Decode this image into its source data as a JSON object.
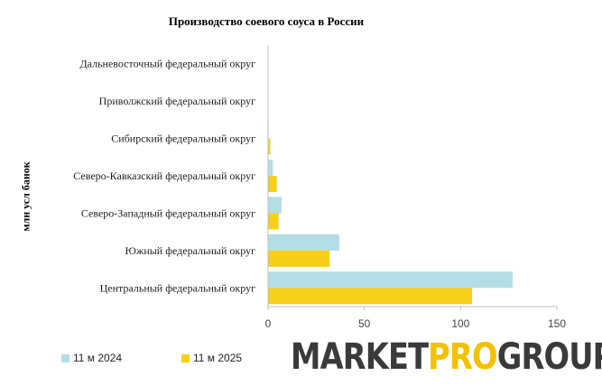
{
  "colors": {
    "series_2024": "#b5dde6",
    "series_2025": "#f5cf18",
    "axis": "#bfbfbf",
    "logo_dark": "#3a3a3a",
    "logo_accent": "#f2c100"
  },
  "chart_data": {
    "type": "bar",
    "orientation": "horizontal",
    "title": "Производство соевого соуса в России",
    "ylabel": "млн усл банок",
    "xlabel": "",
    "categories": [
      "Центральный федеральный округ",
      "Южный федеральный округ",
      "Северо-Западный федеральный округ",
      "Северо-Кавказский федеральный округ",
      "Сибирский федеральный округ",
      "Приволжский федеральный округ",
      "Дальневосточный федеральный округ"
    ],
    "series": [
      {
        "name": "11 м 2024",
        "values": [
          127,
          37,
          7,
          2.5,
          0.3,
          0,
          0
        ]
      },
      {
        "name": "11 м 2025",
        "values": [
          106,
          32,
          5.5,
          4.5,
          1.2,
          0,
          0
        ]
      }
    ],
    "xlim": [
      0,
      150
    ],
    "xticks": [
      "0",
      "50",
      "100",
      "150"
    ],
    "grid": false,
    "legend_position": "bottom-left"
  },
  "logo": {
    "part1": "MARKET",
    "part2": "PRO",
    "part3": "GROUP"
  }
}
